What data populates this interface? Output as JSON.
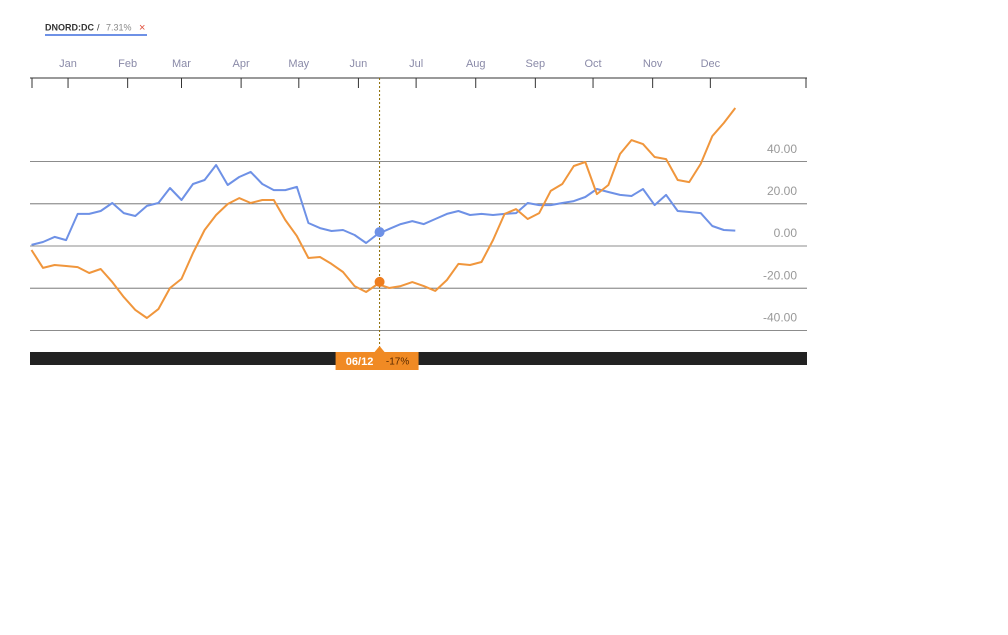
{
  "chart_data": {
    "type": "line",
    "legend": {
      "separator": "/",
      "value_label": "7.31%",
      "close": "×"
    },
    "x": [
      -19,
      -13,
      -7,
      -1,
      5,
      11,
      17,
      23,
      29,
      35,
      41,
      47,
      53,
      59,
      65,
      71,
      77,
      83,
      89,
      95,
      101,
      107,
      113,
      119,
      125,
      131,
      137,
      143,
      149,
      155,
      161,
      167,
      173,
      179,
      185,
      191,
      197,
      203,
      209,
      215,
      221,
      227,
      233,
      239,
      245,
      251,
      257,
      263,
      269,
      275,
      281,
      287,
      293,
      299,
      305,
      311,
      317,
      323,
      329,
      335,
      341,
      347
    ],
    "series": [
      {
        "name": "DNORD:DC",
        "color": "#6e91e6",
        "values": [
          0.5,
          1.9,
          4.3,
          2.8,
          15.2,
          15.2,
          16.6,
          20.4,
          15.6,
          14.2,
          19.0,
          20.4,
          27.5,
          21.8,
          29.4,
          31.3,
          38.4,
          28.9,
          32.7,
          35.1,
          29.4,
          26.5,
          26.5,
          28.0,
          10.9,
          8.5,
          7.1,
          7.6,
          5.2,
          1.4,
          5.7,
          8.1,
          10.4,
          11.8,
          10.4,
          12.8,
          15.2,
          16.6,
          14.7,
          15.2,
          14.7,
          15.2,
          15.6,
          20.4,
          19.4,
          19.4,
          20.4,
          21.3,
          23.2,
          27.0,
          25.6,
          24.2,
          23.7,
          27.0,
          19.4,
          24.2,
          16.6,
          16.1,
          15.6,
          9.5,
          7.6,
          7.3
        ]
      },
      {
        "color": "#f0963c",
        "values": [
          -1.9,
          -10.4,
          -9.0,
          -9.5,
          -10.0,
          -12.8,
          -10.9,
          -17.1,
          -24.2,
          -30.3,
          -34.1,
          -29.9,
          -19.9,
          -15.6,
          -3.3,
          7.6,
          14.7,
          19.9,
          22.7,
          20.4,
          21.8,
          21.8,
          12.3,
          4.7,
          -5.7,
          -5.2,
          -8.5,
          -12.3,
          -19.0,
          -21.8,
          -18.0,
          -19.9,
          -19.0,
          -17.1,
          -19.0,
          -21.3,
          -16.1,
          -8.5,
          -9.0,
          -7.6,
          2.8,
          15.2,
          17.5,
          12.8,
          15.6,
          26.1,
          29.4,
          37.9,
          39.8,
          24.6,
          28.9,
          43.6,
          50.2,
          48.3,
          42.2,
          41.2,
          31.3,
          30.3,
          38.9,
          52.1,
          58.3,
          65.4
        ]
      }
    ],
    "xlim": [
      -19,
      384
    ],
    "xticks": [
      {
        "value": 0,
        "label": "Jan"
      },
      {
        "value": 31,
        "label": "Feb"
      },
      {
        "value": 59,
        "label": "Mar"
      },
      {
        "value": 90,
        "label": "Apr"
      },
      {
        "value": 120,
        "label": "May"
      },
      {
        "value": 151,
        "label": "Jun"
      },
      {
        "value": 181,
        "label": "Jul"
      },
      {
        "value": 212,
        "label": "Aug"
      },
      {
        "value": 243,
        "label": "Sep"
      },
      {
        "value": 273,
        "label": "Oct"
      },
      {
        "value": 304,
        "label": "Nov"
      },
      {
        "value": 334,
        "label": "Dec"
      }
    ],
    "ylim": [
      -50,
      80
    ],
    "yticks": [
      {
        "value": 40,
        "label": "40.00"
      },
      {
        "value": 20,
        "label": "20.00"
      },
      {
        "value": 0,
        "label": "0.00"
      },
      {
        "value": -20,
        "label": "-20.00"
      },
      {
        "value": -40,
        "label": "-40.00"
      }
    ],
    "grid": true,
    "crosshair": {
      "x": 162,
      "x_label": "06/12",
      "values": [
        6.6,
        -17
      ],
      "value_label": "-17%"
    }
  }
}
